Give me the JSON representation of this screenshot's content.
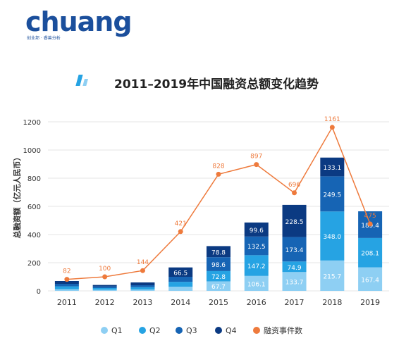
{
  "logo": {
    "word": "chuang",
    "tagline": "创业邦 · 睿兽分析"
  },
  "colors": {
    "q1": "#8ECFF3",
    "q2": "#26A3E3",
    "q3": "#1664B4",
    "q4": "#0B3A82",
    "events": "#EE7A3C",
    "title": "#222222",
    "axis_text": "#333333",
    "grid": "#E6E6E6",
    "logo": "#1B4F9C"
  },
  "chart_data": {
    "type": "bar",
    "title": "2011–2019年中国融资总额变化趋势",
    "ylabel": "总融资额（亿元人民币）",
    "ylim": [
      0,
      1200
    ],
    "yticks": [
      0,
      200,
      400,
      600,
      800,
      1000,
      1200
    ],
    "categories": [
      "2011",
      "2012",
      "2013",
      "2014",
      "2015",
      "2016",
      "2017",
      "2018",
      "2019"
    ],
    "series": [
      {
        "name": "Q1",
        "values": [
          12,
          8,
          10,
          30,
          67.7,
          106.1,
          133.7,
          215.7,
          167.4
        ],
        "labels": [
          "",
          "",
          "",
          "",
          "67.7",
          "106.1",
          "133.7",
          "215.7",
          "167.4"
        ]
      },
      {
        "name": "Q2",
        "values": [
          20,
          12,
          16,
          34,
          72.8,
          147.2,
          74.9,
          348.0,
          208.1
        ],
        "labels": [
          "",
          "",
          "",
          "",
          "72.8",
          "147.2",
          "74.9",
          "348.0",
          "208.1"
        ]
      },
      {
        "name": "Q3",
        "values": [
          18,
          12,
          14,
          36,
          98.6,
          132.5,
          173.4,
          249.5,
          189.4
        ],
        "labels": [
          "",
          "",
          "",
          "",
          "98.6",
          "132.5",
          "173.4",
          "249.5",
          "189.4"
        ]
      },
      {
        "name": "Q4",
        "values": [
          20,
          10,
          20,
          66.5,
          78.8,
          99.6,
          228.5,
          133.1,
          0
        ],
        "labels": [
          "",
          "",
          "",
          "66.5",
          "78.8",
          "99.6",
          "228.5",
          "133.1",
          ""
        ]
      }
    ],
    "events": {
      "name": "融资事件数",
      "values": [
        82,
        100,
        144,
        421,
        828,
        897,
        696,
        1161,
        475
      ]
    },
    "legend": [
      "Q1",
      "Q2",
      "Q3",
      "Q4",
      "融资事件数"
    ],
    "legend_position": "bottom",
    "grid": true
  }
}
